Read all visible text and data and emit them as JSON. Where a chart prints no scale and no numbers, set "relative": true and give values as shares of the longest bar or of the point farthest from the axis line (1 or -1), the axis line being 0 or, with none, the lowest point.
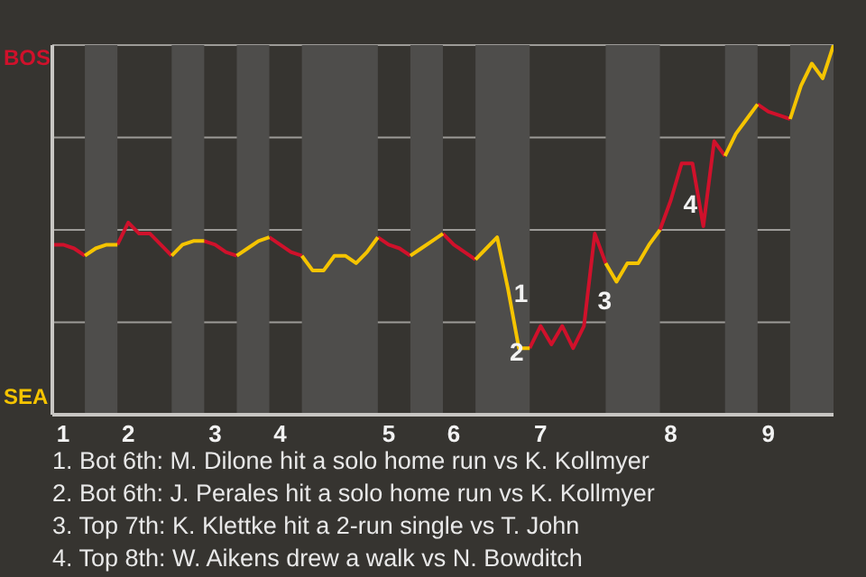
{
  "chart_data": {
    "type": "line",
    "relative": true,
    "categories": [
      null,
      "1",
      null,
      null,
      null,
      null,
      null,
      "2",
      null,
      null,
      null,
      null,
      null,
      null,
      null,
      "3",
      null,
      null,
      null,
      null,
      null,
      "4",
      null,
      null,
      null,
      null,
      null,
      null,
      null,
      null,
      null,
      "5",
      null,
      null,
      null,
      null,
      null,
      "6",
      null,
      null,
      null,
      null,
      null,
      null,
      null,
      "7",
      null,
      null,
      null,
      null,
      null,
      null,
      null,
      null,
      null,
      null,
      null,
      "8",
      null,
      null,
      null,
      null,
      null,
      null,
      null,
      null,
      "9",
      null,
      null,
      null,
      null,
      null,
      null
    ],
    "series": [
      {
        "name": "BOS",
        "color": "#d0112b",
        "values": [
          0.46,
          0.46,
          0.45,
          0.43,
          null,
          null,
          0.46,
          0.52,
          0.49,
          0.49,
          0.46,
          0.43,
          null,
          null,
          0.47,
          0.46,
          0.44,
          0.43,
          null,
          null,
          0.48,
          0.46,
          0.44,
          0.43,
          null,
          null,
          null,
          null,
          null,
          null,
          0.48,
          0.46,
          0.45,
          0.43,
          null,
          null,
          0.49,
          0.46,
          0.44,
          0.42,
          null,
          null,
          null,
          null,
          0.18,
          0.24,
          0.19,
          0.24,
          0.18,
          0.24,
          0.49,
          0.41,
          null,
          null,
          null,
          null,
          0.5,
          0.58,
          0.68,
          0.68,
          0.51,
          0.74,
          0.7,
          null,
          null,
          0.84,
          0.82,
          0.81,
          0.8,
          null,
          null,
          null,
          null
        ]
      },
      {
        "name": "SEA",
        "color": "#f5c400",
        "values": [
          null,
          null,
          null,
          0.43,
          0.45,
          0.46,
          0.46,
          null,
          null,
          null,
          null,
          0.43,
          0.46,
          0.47,
          0.47,
          null,
          null,
          0.43,
          0.45,
          0.47,
          0.48,
          null,
          null,
          0.43,
          0.39,
          0.39,
          0.43,
          0.43,
          0.41,
          0.44,
          0.48,
          null,
          null,
          0.43,
          0.45,
          0.47,
          0.49,
          null,
          null,
          0.42,
          0.45,
          0.48,
          0.34,
          0.18,
          0.18,
          null,
          null,
          null,
          null,
          null,
          null,
          0.41,
          0.36,
          0.41,
          0.41,
          0.46,
          0.5,
          null,
          null,
          null,
          null,
          null,
          0.7,
          0.76,
          0.8,
          0.84,
          null,
          null,
          0.8,
          0.89,
          0.95,
          0.91,
          1
        ]
      }
    ],
    "grid": "y",
    "annotations": [
      "1",
      "2",
      "3",
      "4",
      "1. Bot 6th: M. Dilone hit a solo home run vs K. Kollmyer",
      "2. Bot 6th: J. Perales hit a solo home run vs K. Kollmyer",
      "3. Top 7th: K. Klettke hit a 2-run single vs T. John",
      "4. Top 8th: W. Aikens drew a walk vs N. Bowditch"
    ]
  }
}
